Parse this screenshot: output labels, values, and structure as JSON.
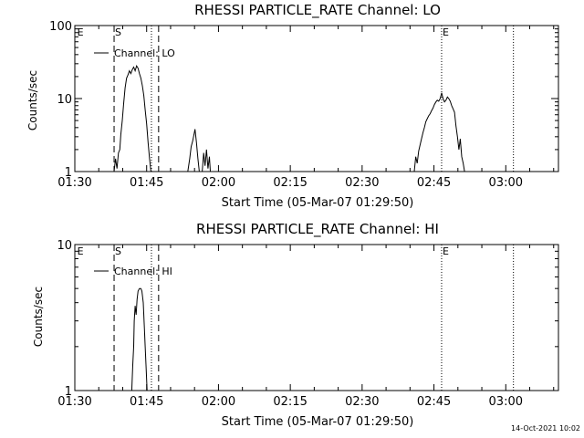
{
  "chart_data": [
    {
      "type": "line",
      "title": "RHESSI PARTICLE_RATE Channel: LO",
      "xlabel": "Start Time (05-Mar-07 01:29:50)",
      "ylabel": "Counts/sec",
      "yscale": "log",
      "ylim": [
        1,
        100
      ],
      "xlim_min": [
        90,
        191
      ],
      "x_tick_values": [
        90,
        105,
        120,
        135,
        150,
        165,
        180
      ],
      "x_tick_labels": [
        "01:30",
        "01:45",
        "02:00",
        "02:15",
        "02:30",
        "02:45",
        "03:00"
      ],
      "y_tick_values": [
        1,
        10,
        100
      ],
      "y_tick_labels": [
        "1",
        "10",
        "100"
      ],
      "legend": "Channel: LO",
      "markers": [
        {
          "label": "E",
          "t": 90.3,
          "style": "none"
        },
        {
          "label": "S",
          "t": 98.2,
          "style": "dashed"
        },
        {
          "label": "",
          "t": 106.0,
          "style": "dotted"
        },
        {
          "label": "",
          "t": 107.5,
          "style": "dashed"
        },
        {
          "label": "E",
          "t": 166.6,
          "style": "dotted"
        },
        {
          "label": "",
          "t": 181.6,
          "style": "dotted"
        }
      ],
      "series": [
        {
          "name": "Channel: LO",
          "segments": [
            {
              "x": [
                98.2,
                98.5,
                98.8,
                99.1,
                99.4,
                99.6,
                99.9,
                100.2,
                100.5,
                100.8,
                101.1,
                101.4,
                101.7,
                102.0,
                102.3,
                102.6,
                102.9,
                103.2,
                103.5,
                103.8,
                104.1,
                104.4,
                104.7,
                105.0,
                105.3,
                105.6,
                105.9
              ],
              "y": [
                1,
                1.5,
                1.1,
                1.8,
                2.0,
                3.2,
                5.0,
                8.5,
                14,
                19,
                21,
                24,
                22,
                25,
                27,
                24,
                28,
                26,
                22,
                19,
                15,
                11,
                7,
                4.5,
                2.5,
                1.5,
                1
              ]
            },
            {
              "x": [
                113.6,
                114.0,
                114.3,
                114.6,
                114.8,
                115.1,
                115.4,
                115.7,
                116.0
              ],
              "y": [
                1,
                1.5,
                2.2,
                2.6,
                3.0,
                3.8,
                2.5,
                1.5,
                1
              ]
            },
            {
              "x": [
                116.6,
                116.9,
                117.2,
                117.5,
                117.8,
                118.1,
                118.3
              ],
              "y": [
                1,
                1.8,
                1.2,
                2.0,
                1.1,
                1.6,
                1
              ]
            },
            {
              "x": [
                160.9,
                161.2,
                161.5,
                161.8,
                162.1,
                162.4,
                162.7,
                163.0,
                163.3,
                163.6,
                163.9,
                164.2,
                164.5,
                164.8,
                165.1,
                165.4,
                165.7,
                166.0,
                166.3,
                166.6,
                166.9,
                167.2,
                167.5,
                167.8,
                168.1,
                168.4,
                168.7,
                169.0,
                169.3,
                169.6,
                169.9,
                170.2,
                170.5,
                170.8,
                171.1,
                171.4
              ],
              "y": [
                1,
                1.6,
                1.3,
                1.9,
                2.3,
                2.8,
                3.4,
                4.0,
                4.8,
                5.3,
                5.8,
                6.2,
                6.8,
                7.4,
                8.3,
                9.0,
                9.5,
                9.2,
                10.0,
                12.0,
                10.0,
                9.0,
                9.5,
                10.5,
                10.0,
                9.2,
                8.0,
                7.2,
                6.5,
                4.2,
                3.0,
                2.0,
                2.8,
                1.6,
                1.3,
                1
              ]
            }
          ]
        }
      ]
    },
    {
      "type": "line",
      "title": "RHESSI PARTICLE_RATE Channel: HI",
      "xlabel": "Start Time (05-Mar-07 01:29:50)",
      "ylabel": "Counts/sec",
      "yscale": "log",
      "ylim": [
        1,
        10
      ],
      "xlim_min": [
        90,
        191
      ],
      "x_tick_values": [
        90,
        105,
        120,
        135,
        150,
        165,
        180
      ],
      "x_tick_labels": [
        "01:30",
        "01:45",
        "02:00",
        "02:15",
        "02:30",
        "02:45",
        "03:00"
      ],
      "y_tick_values": [
        1,
        10
      ],
      "y_tick_labels": [
        "1",
        "10"
      ],
      "legend": "Channel: HI",
      "markers": [
        {
          "label": "E",
          "t": 90.3,
          "style": "none"
        },
        {
          "label": "S",
          "t": 98.2,
          "style": "dashed"
        },
        {
          "label": "",
          "t": 106.0,
          "style": "dotted"
        },
        {
          "label": "",
          "t": 107.5,
          "style": "dashed"
        },
        {
          "label": "E",
          "t": 166.6,
          "style": "dotted"
        },
        {
          "label": "",
          "t": 181.6,
          "style": "dotted"
        }
      ],
      "series": [
        {
          "name": "Channel: HI",
          "segments": [
            {
              "x": [
                101.9,
                102.1,
                102.3,
                102.4,
                102.6,
                102.8,
                103.0,
                103.2,
                103.5,
                103.8,
                104.0,
                104.3,
                104.5,
                104.7,
                104.9,
                105.1
              ],
              "y": [
                1,
                1.5,
                2.0,
                3.0,
                3.8,
                3.3,
                4.2,
                4.8,
                5.0,
                5.0,
                4.8,
                4.0,
                2.8,
                2.0,
                1.4,
                1
              ]
            }
          ]
        }
      ]
    }
  ],
  "footer": {
    "timestamp": "14-Oct-2021 10:02"
  }
}
